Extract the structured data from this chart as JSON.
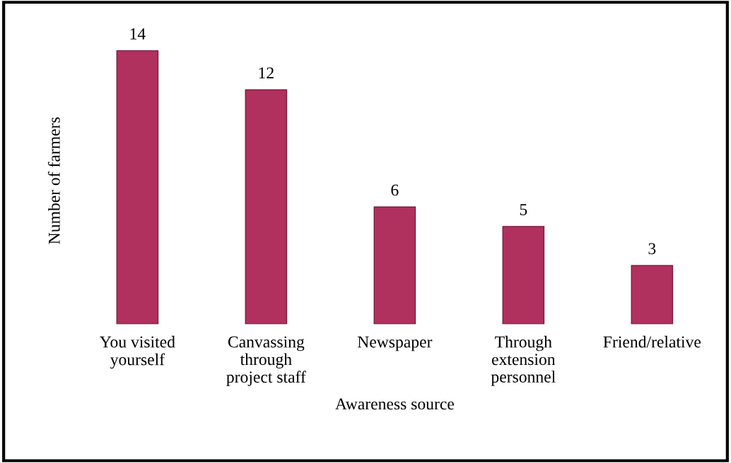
{
  "chart_data": {
    "type": "bar",
    "xlabel": "Awareness source",
    "ylabel": "Number of farmers",
    "categories": [
      "You visited\nyourself",
      "Canvassing\nthrough\nproject staff",
      "Newspaper",
      "Through\nextension\npersonnel",
      "Friend/relative"
    ],
    "values": [
      14,
      12,
      6,
      5,
      3
    ],
    "color": "#b0305e",
    "data_labels": true,
    "grid": false,
    "tick_labels": "x"
  }
}
